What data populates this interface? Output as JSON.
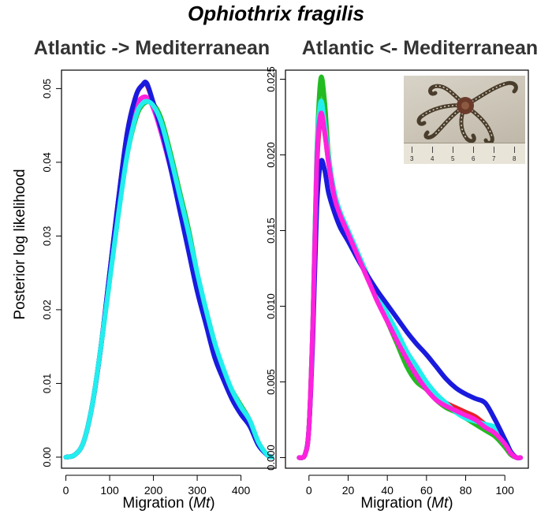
{
  "figure_title": "Ophiothrix fragilis",
  "shared_ylabel": "Posterior log likelihood",
  "inset_photo": {
    "subject": "brittle star photograph with ruler",
    "ruler_labels": [
      "3",
      "4",
      "5",
      "6",
      "7",
      "8"
    ]
  },
  "colors": {
    "green": "#22bb22",
    "red": "#e8202a",
    "magenta": "#ff22dd",
    "cyan": "#22eeee",
    "blue": "#1a1adf"
  },
  "chart_data": [
    {
      "type": "line",
      "title": "Atlantic -> Mediterranean",
      "xlabel": "Migration (Mt)",
      "ylabel": "Posterior log likelihood",
      "xlim": [
        -10,
        480
      ],
      "ylim": [
        -0.0015,
        0.0525
      ],
      "xticks": [
        0,
        100,
        200,
        300,
        400
      ],
      "yticks": [
        0.0,
        0.01,
        0.02,
        0.03,
        0.04,
        0.05
      ],
      "ytick_labels": [
        "0.00",
        "0.01",
        "0.02",
        "0.03",
        "0.04",
        "0.05"
      ],
      "series": [
        {
          "color": "green",
          "x": [
            0,
            20,
            40,
            60,
            80,
            100,
            120,
            140,
            160,
            175,
            190,
            205,
            220,
            240,
            260,
            280,
            300,
            320,
            340,
            360,
            380,
            400,
            420,
            440,
            460,
            470
          ],
          "y": [
            0,
            0.0003,
            0.002,
            0.007,
            0.015,
            0.024,
            0.033,
            0.041,
            0.046,
            0.0478,
            0.0482,
            0.0475,
            0.0455,
            0.041,
            0.036,
            0.031,
            0.025,
            0.02,
            0.0155,
            0.0115,
            0.009,
            0.007,
            0.005,
            0.002,
            0.0003,
            0.0
          ]
        },
        {
          "color": "red",
          "x": [
            0,
            20,
            40,
            60,
            80,
            100,
            120,
            140,
            160,
            175,
            185,
            200,
            220,
            240,
            260,
            280,
            300,
            320,
            340,
            360,
            380,
            400,
            420,
            440,
            460,
            470
          ],
          "y": [
            0,
            0.0003,
            0.002,
            0.007,
            0.015,
            0.025,
            0.035,
            0.044,
            0.049,
            0.0505,
            0.0505,
            0.048,
            0.0445,
            0.0395,
            0.034,
            0.0285,
            0.023,
            0.0185,
            0.0145,
            0.0115,
            0.0085,
            0.0065,
            0.0045,
            0.0018,
            0.0003,
            0.0
          ]
        },
        {
          "color": "magenta",
          "x": [
            0,
            20,
            40,
            60,
            80,
            100,
            120,
            140,
            160,
            175,
            190,
            205,
            220,
            240,
            260,
            280,
            300,
            320,
            340,
            360,
            380,
            400,
            420,
            440,
            460,
            470
          ],
          "y": [
            0,
            0.0003,
            0.002,
            0.007,
            0.015,
            0.025,
            0.035,
            0.043,
            0.0475,
            0.0488,
            0.0485,
            0.0465,
            0.0435,
            0.039,
            0.034,
            0.0285,
            0.0235,
            0.0185,
            0.0145,
            0.0115,
            0.0085,
            0.0065,
            0.0048,
            0.0018,
            0.0003,
            0.0
          ]
        },
        {
          "color": "blue",
          "x": [
            0,
            20,
            40,
            60,
            80,
            100,
            120,
            140,
            160,
            175,
            185,
            200,
            220,
            240,
            260,
            280,
            300,
            320,
            340,
            360,
            380,
            400,
            420,
            440,
            460,
            470
          ],
          "y": [
            0,
            0.0003,
            0.002,
            0.007,
            0.015,
            0.025,
            0.035,
            0.044,
            0.049,
            0.0505,
            0.0507,
            0.048,
            0.044,
            0.039,
            0.0335,
            0.028,
            0.0225,
            0.018,
            0.0135,
            0.0105,
            0.0078,
            0.0058,
            0.0042,
            0.0016,
            0.0003,
            0.0
          ]
        },
        {
          "color": "cyan",
          "x": [
            0,
            20,
            40,
            60,
            80,
            100,
            120,
            140,
            160,
            175,
            190,
            205,
            220,
            240,
            260,
            280,
            300,
            320,
            340,
            360,
            380,
            400,
            420,
            440,
            460,
            470
          ],
          "y": [
            0,
            0.0003,
            0.002,
            0.007,
            0.015,
            0.024,
            0.033,
            0.041,
            0.0463,
            0.048,
            0.0482,
            0.0472,
            0.045,
            0.0405,
            0.0355,
            0.0305,
            0.025,
            0.02,
            0.0155,
            0.012,
            0.009,
            0.0068,
            0.005,
            0.002,
            0.0003,
            0.0
          ]
        }
      ]
    },
    {
      "type": "line",
      "title": "Atlantic <- Mediterranean",
      "xlabel": "Migration (Mt)",
      "xlim": [
        -12,
        112
      ],
      "ylim": [
        -0.0007,
        0.0256
      ],
      "xticks": [
        0,
        20,
        40,
        60,
        80,
        100
      ],
      "yticks": [
        0.0,
        0.005,
        0.01,
        0.015,
        0.02,
        0.025
      ],
      "ytick_labels": [
        "0.000",
        "0.005",
        "0.010",
        "0.015",
        "0.020",
        "0.025"
      ],
      "series": [
        {
          "color": "green",
          "x": [
            -5,
            -2,
            0,
            2,
            4,
            6,
            8,
            10,
            13,
            16,
            20,
            25,
            30,
            35,
            40,
            45,
            50,
            55,
            60,
            65,
            70,
            75,
            80,
            85,
            90,
            95,
            100,
            103,
            106,
            108
          ],
          "y": [
            0,
            0.0002,
            0.002,
            0.009,
            0.02,
            0.025,
            0.0235,
            0.02,
            0.0175,
            0.0162,
            0.015,
            0.0135,
            0.012,
            0.0105,
            0.009,
            0.0075,
            0.006,
            0.005,
            0.0045,
            0.0038,
            0.0033,
            0.003,
            0.0026,
            0.0022,
            0.0018,
            0.0014,
            0.0007,
            0.0002,
            0.0,
            0.0
          ]
        },
        {
          "color": "red",
          "x": [
            -5,
            -2,
            0,
            2,
            4,
            6,
            8,
            10,
            13,
            16,
            20,
            25,
            30,
            35,
            40,
            45,
            50,
            55,
            60,
            65,
            70,
            75,
            80,
            85,
            90,
            95,
            100,
            103,
            106,
            108
          ],
          "y": [
            0,
            0.0002,
            0.002,
            0.009,
            0.019,
            0.0225,
            0.0215,
            0.0195,
            0.0173,
            0.016,
            0.0148,
            0.0133,
            0.0118,
            0.0104,
            0.009,
            0.0077,
            0.0065,
            0.0055,
            0.0047,
            0.004,
            0.0036,
            0.0033,
            0.003,
            0.0027,
            0.0022,
            0.0018,
            0.001,
            0.0003,
            0.0,
            0.0
          ]
        },
        {
          "color": "cyan",
          "x": [
            -5,
            -2,
            0,
            2,
            4,
            6,
            8,
            10,
            13,
            16,
            20,
            25,
            30,
            35,
            40,
            45,
            50,
            55,
            60,
            65,
            70,
            75,
            80,
            85,
            90,
            95,
            100,
            103,
            106,
            108
          ],
          "y": [
            0,
            0.0002,
            0.002,
            0.009,
            0.02,
            0.0235,
            0.022,
            0.0198,
            0.0175,
            0.0162,
            0.015,
            0.0135,
            0.012,
            0.0107,
            0.0095,
            0.0083,
            0.007,
            0.006,
            0.005,
            0.0042,
            0.0036,
            0.003,
            0.0026,
            0.0024,
            0.0022,
            0.002,
            0.0012,
            0.0004,
            0.0,
            0.0
          ]
        },
        {
          "color": "blue",
          "x": [
            -5,
            -2,
            0,
            2,
            4,
            6,
            8,
            10,
            13,
            16,
            20,
            25,
            30,
            35,
            40,
            45,
            50,
            55,
            60,
            65,
            70,
            75,
            80,
            85,
            90,
            95,
            100,
            103,
            106,
            108
          ],
          "y": [
            0,
            0.0002,
            0.002,
            0.008,
            0.0165,
            0.0195,
            0.019,
            0.0175,
            0.0162,
            0.0152,
            0.0143,
            0.0131,
            0.012,
            0.011,
            0.0101,
            0.0092,
            0.0083,
            0.0075,
            0.0068,
            0.006,
            0.0052,
            0.0046,
            0.0042,
            0.0039,
            0.0036,
            0.0025,
            0.0012,
            0.0004,
            0.0,
            0.0
          ]
        },
        {
          "color": "magenta",
          "x": [
            -5,
            -2,
            0,
            2,
            4,
            6,
            8,
            10,
            13,
            16,
            20,
            25,
            30,
            35,
            40,
            45,
            50,
            55,
            60,
            65,
            70,
            75,
            80,
            85,
            90,
            95,
            100,
            103,
            106,
            108
          ],
          "y": [
            0,
            0.0002,
            0.002,
            0.009,
            0.0195,
            0.0227,
            0.0215,
            0.0195,
            0.0172,
            0.016,
            0.0148,
            0.0133,
            0.0118,
            0.0103,
            0.009,
            0.0077,
            0.0065,
            0.0054,
            0.0045,
            0.0038,
            0.0034,
            0.0031,
            0.0028,
            0.0025,
            0.002,
            0.0016,
            0.0009,
            0.0003,
            0.0,
            0.0
          ]
        }
      ]
    }
  ]
}
